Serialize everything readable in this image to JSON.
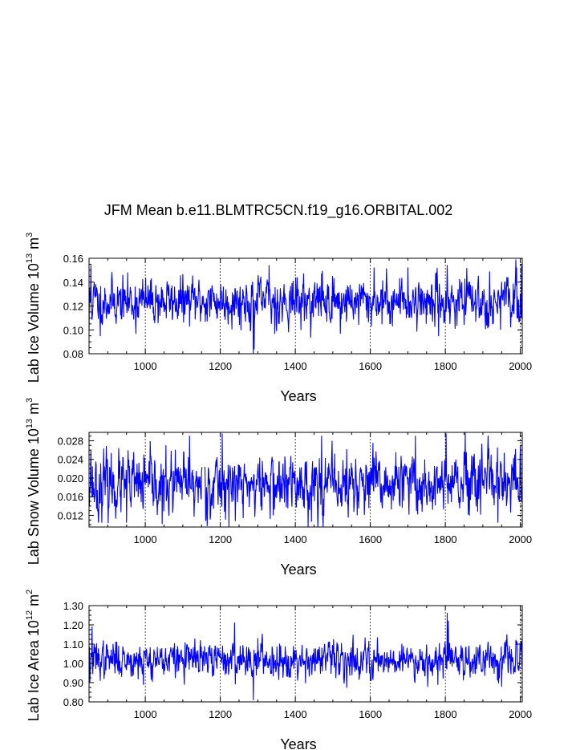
{
  "title": "JFM Mean b.e11.BLMTRC5CN.f19_g16.ORBITAL.002",
  "colors": {
    "series": "#0000ff",
    "axes": "#000000",
    "grid": "#000000"
  },
  "chart_data": [
    {
      "type": "line",
      "name": "panel-ice-volume",
      "series_name": "Lab Ice Volume",
      "ylabel_main": "Lab Ice Volume 10",
      "ylabel_exp": "13",
      "ylabel_unit": " m",
      "ylabel_unit_exp": "3",
      "xlabel": "Years",
      "xlim": [
        850,
        2005
      ],
      "ylim": [
        0.08,
        0.16
      ],
      "xticks": [
        1000,
        1200,
        1400,
        1600,
        1800,
        2000
      ],
      "xtick_labels": [
        "1000",
        "1200",
        "1400",
        "1600",
        "1800",
        "2000"
      ],
      "yticks": [
        0.08,
        0.1,
        0.12,
        0.14,
        0.16
      ],
      "ytick_labels": [
        "0.08",
        "0.10",
        "0.12",
        "0.14",
        "0.16"
      ],
      "x_gridlines": [
        1000,
        1200,
        1400,
        1600,
        1800,
        2000
      ],
      "mean": 0.124,
      "std": 0.0095,
      "seed": 11,
      "spikes": [
        [
          850,
          0.1
        ],
        [
          855,
          0.154
        ],
        [
          868,
          0.138
        ],
        [
          880,
          0.095
        ],
        [
          975,
          0.097
        ],
        [
          1288,
          0.08
        ],
        [
          1290,
          0.084
        ],
        [
          1330,
          0.154
        ],
        [
          1345,
          0.097
        ],
        [
          1470,
          0.147
        ],
        [
          1520,
          0.097
        ],
        [
          1610,
          0.152
        ],
        [
          1700,
          0.152
        ],
        [
          1782,
          0.095
        ],
        [
          1805,
          0.154
        ],
        [
          1910,
          0.104
        ],
        [
          1990,
          0.152
        ],
        [
          2003,
          0.154
        ]
      ]
    },
    {
      "type": "line",
      "name": "panel-snow-volume",
      "series_name": "Lab Snow Volume",
      "ylabel_main": "Lab Snow Volume 10",
      "ylabel_exp": "13",
      "ylabel_unit": " m",
      "ylabel_unit_exp": "3",
      "xlabel": "Years",
      "xlim": [
        850,
        2005
      ],
      "ylim": [
        0.0095,
        0.0298
      ],
      "xticks": [
        1000,
        1200,
        1400,
        1600,
        1800,
        2000
      ],
      "xtick_labels": [
        "1000",
        "1200",
        "1400",
        "1600",
        "1800",
        "2000"
      ],
      "yticks": [
        0.012,
        0.016,
        0.02,
        0.024,
        0.028
      ],
      "ytick_labels": [
        "0.012",
        "0.016",
        "0.020",
        "0.024",
        "0.028"
      ],
      "x_gridlines": [
        1000,
        1200,
        1400,
        1600,
        1800,
        2000
      ],
      "mean": 0.0185,
      "std": 0.0032,
      "seed": 23,
      "gap": [
        1153,
        1158
      ],
      "spikes": [
        [
          855,
          0.026
        ],
        [
          875,
          0.0105
        ],
        [
          950,
          0.0105
        ],
        [
          1045,
          0.0102
        ],
        [
          1118,
          0.029
        ],
        [
          1155,
          0.0102
        ],
        [
          1205,
          0.0295
        ],
        [
          1470,
          0.029
        ],
        [
          1720,
          0.029
        ],
        [
          1802,
          0.0295
        ],
        [
          1940,
          0.0105
        ],
        [
          2000,
          0.027
        ]
      ]
    },
    {
      "type": "line",
      "name": "panel-ice-area",
      "series_name": "Lab Ice Area",
      "ylabel_main": "Lab Ice Area 10",
      "ylabel_exp": "12",
      "ylabel_unit": " m",
      "ylabel_unit_exp": "2",
      "xlabel": "Years",
      "xlim": [
        850,
        2005
      ],
      "ylim": [
        0.8,
        1.3
      ],
      "xticks": [
        1000,
        1200,
        1400,
        1600,
        1800,
        2000
      ],
      "xtick_labels": [
        "1000",
        "1200",
        "1400",
        "1600",
        "1800",
        "2000"
      ],
      "yticks": [
        0.8,
        0.9,
        1.0,
        1.1,
        1.2,
        1.3
      ],
      "ytick_labels": [
        "0.80",
        "0.90",
        "1.00",
        "1.10",
        "1.20",
        "1.30"
      ],
      "x_gridlines": [
        1000,
        1200,
        1400,
        1600,
        1800,
        2000
      ],
      "mean": 1.02,
      "std": 0.045,
      "seed": 37,
      "spikes": [
        [
          852,
          0.9
        ],
        [
          858,
          1.19
        ],
        [
          995,
          0.89
        ],
        [
          1238,
          1.21
        ],
        [
          1288,
          0.81
        ],
        [
          1300,
          1.13
        ],
        [
          1600,
          0.91
        ],
        [
          1780,
          0.89
        ],
        [
          1805,
          1.26
        ],
        [
          1808,
          1.22
        ],
        [
          1950,
          0.88
        ],
        [
          2003,
          1.11
        ]
      ]
    }
  ]
}
